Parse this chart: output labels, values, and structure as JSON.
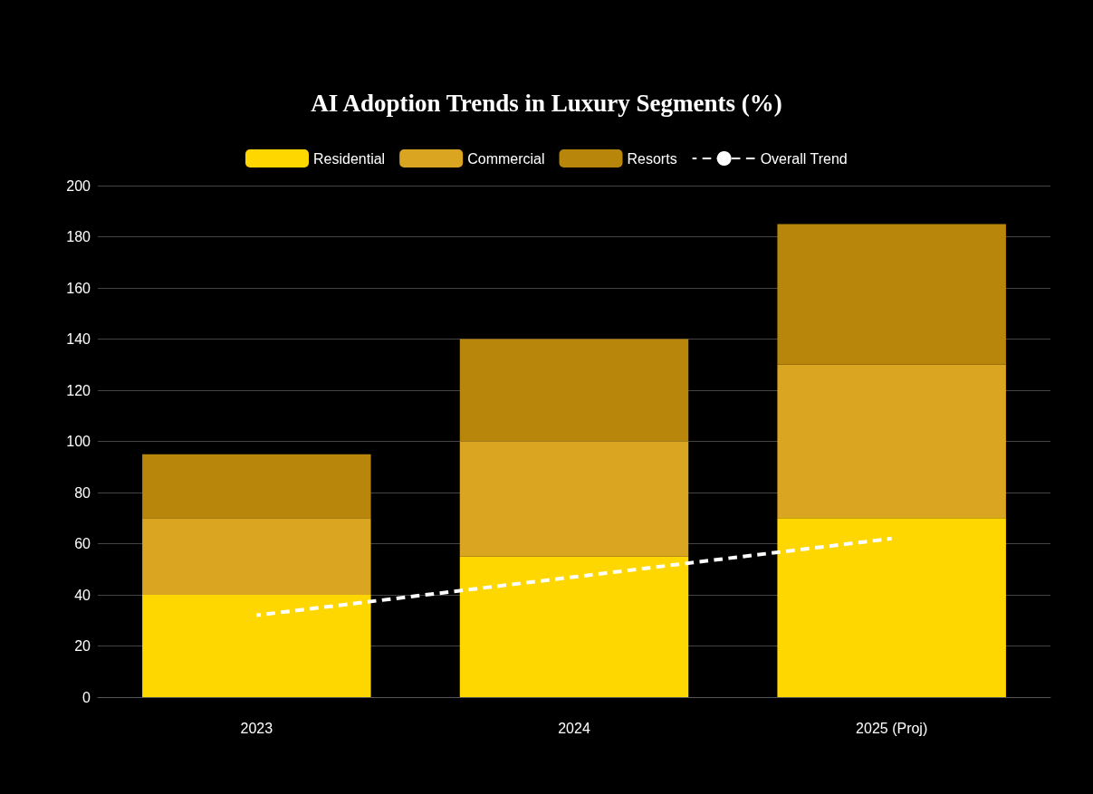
{
  "chart_data": {
    "type": "bar",
    "title": "AI Adoption Trends in Luxury Segments (%)",
    "categories": [
      "2023",
      "2024",
      "2025 (Proj)"
    ],
    "stacked": true,
    "series": [
      {
        "name": "Residential",
        "color": "#ffd700",
        "values": [
          40,
          55,
          70
        ]
      },
      {
        "name": "Commercial",
        "color": "#daa520",
        "values": [
          30,
          45,
          60
        ]
      },
      {
        "name": "Resorts",
        "color": "#b8860b",
        "values": [
          25,
          40,
          55
        ]
      },
      {
        "name": "Overall Trend",
        "type": "line",
        "color": "#ffffff",
        "line_style": "dashed",
        "values": [
          32,
          47,
          62
        ]
      }
    ],
    "ylim": [
      0,
      200
    ],
    "yticks": [
      0,
      20,
      40,
      60,
      80,
      100,
      120,
      140,
      160,
      180,
      200
    ],
    "grid": "y",
    "legend": "top"
  }
}
